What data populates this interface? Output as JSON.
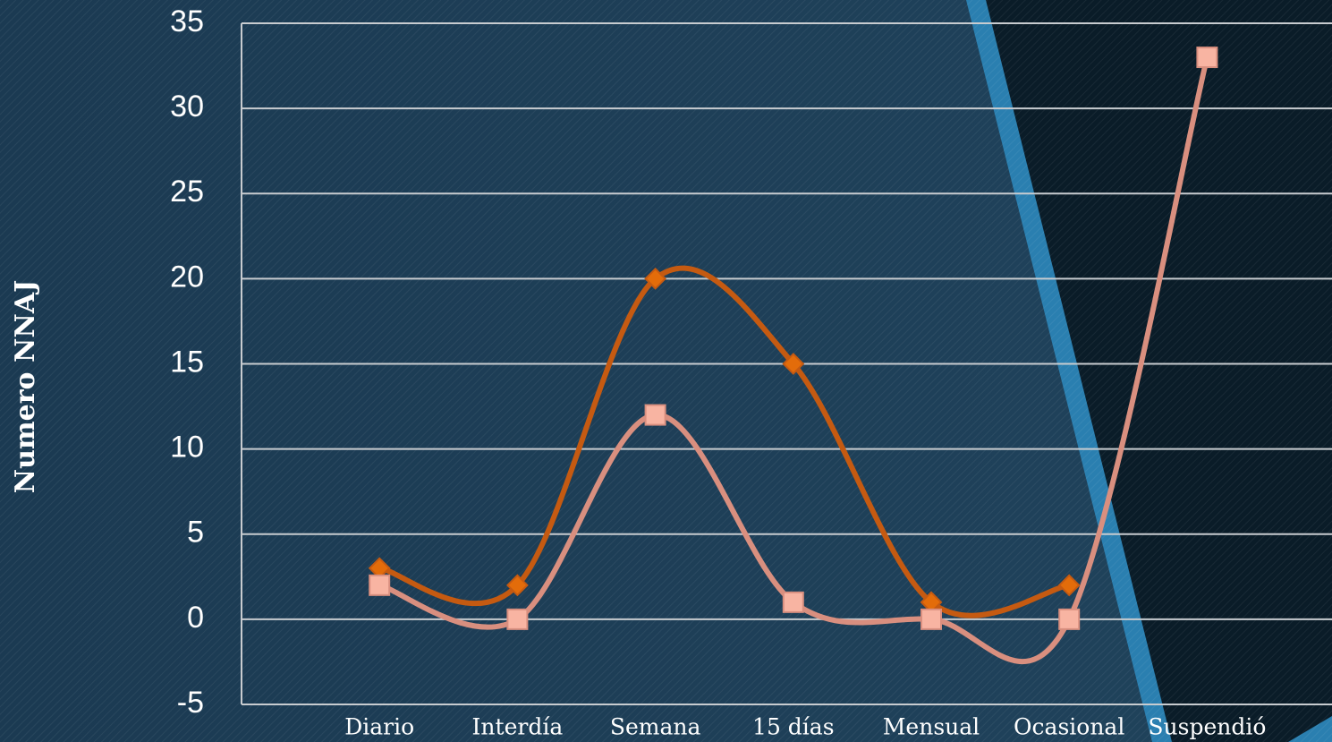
{
  "chart_data": {
    "type": "line",
    "y_label": "Numero NNAJ",
    "categories": [
      "Diario",
      "Interdía",
      "Semana",
      "15 días",
      "Mensual",
      "Ocasional",
      "Suspendió"
    ],
    "series": [
      {
        "color": "#c55a11",
        "marker_color": "#e36c0a",
        "marker": "diamond",
        "values": [
          3,
          2,
          20,
          15,
          1,
          2,
          null
        ]
      },
      {
        "color": "#d98f7f",
        "marker_color": "#f8b4a2",
        "marker": "square",
        "values": [
          2,
          0,
          12,
          1,
          0,
          0,
          33
        ]
      }
    ],
    "ylim": [
      -5,
      35
    ],
    "yticks": [
      -5,
      0,
      5,
      10,
      15,
      20,
      25,
      30,
      35
    ],
    "grid": true,
    "smooth": true
  }
}
